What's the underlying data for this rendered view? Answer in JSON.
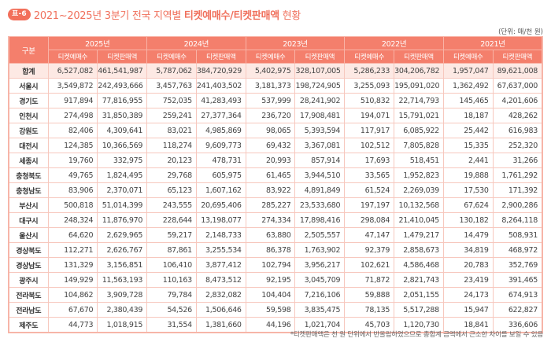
{
  "title": {
    "badge": "표-6",
    "text_plain": "2021~2025년 3분기 전국 지역별 ",
    "text_bold": "티켓예매수/티켓판매액",
    "text_tail": " 현황"
  },
  "unit": "(단위: 매/천 원)",
  "table": {
    "region_header": "구분",
    "years": [
      "2025년",
      "2024년",
      "2023년",
      "2022년",
      "2021년"
    ],
    "sub_headers": [
      "티켓예매수",
      "티켓판매액"
    ],
    "rows": [
      {
        "region": "합계",
        "values": [
          "6,527,082",
          "461,541,987",
          "5,787,062",
          "384,720,929",
          "5,402,975",
          "328,107,005",
          "5,286,233",
          "304,206,782",
          "1,957,047",
          "89,621,008"
        ]
      },
      {
        "region": "서울시",
        "values": [
          "3,549,872",
          "242,493,666",
          "3,457,763",
          "241,403,502",
          "3,181,373",
          "198,724,905",
          "3,255,093",
          "195,091,020",
          "1,362,492",
          "67,637,000"
        ]
      },
      {
        "region": "경기도",
        "values": [
          "917,894",
          "77,816,955",
          "752,035",
          "41,283,493",
          "537,999",
          "28,241,902",
          "510,832",
          "22,714,793",
          "145,465",
          "4,201,606"
        ]
      },
      {
        "region": "인천시",
        "values": [
          "274,498",
          "31,850,389",
          "259,241",
          "27,377,364",
          "236,720",
          "17,908,481",
          "194,071",
          "15,791,021",
          "18,187",
          "428,262"
        ]
      },
      {
        "region": "강원도",
        "values": [
          "82,406",
          "4,309,641",
          "83,021",
          "4,985,869",
          "98,065",
          "5,393,594",
          "117,917",
          "6,085,922",
          "25,442",
          "616,983"
        ]
      },
      {
        "region": "대전시",
        "values": [
          "124,385",
          "10,366,569",
          "118,274",
          "9,609,773",
          "69,432",
          "3,367,081",
          "102,512",
          "7,805,828",
          "15,335",
          "252,320"
        ]
      },
      {
        "region": "세종시",
        "values": [
          "19,760",
          "332,975",
          "20,123",
          "478,731",
          "20,993",
          "857,914",
          "17,693",
          "518,451",
          "2,441",
          "31,266"
        ]
      },
      {
        "region": "충청북도",
        "values": [
          "49,765",
          "1,824,495",
          "29,768",
          "605,975",
          "61,465",
          "3,944,510",
          "33,565",
          "1,952,823",
          "19,888",
          "1,761,292"
        ]
      },
      {
        "region": "충청남도",
        "values": [
          "83,906",
          "2,370,071",
          "65,123",
          "1,607,162",
          "83,922",
          "4,891,849",
          "61,524",
          "2,269,039",
          "17,530",
          "171,392"
        ]
      },
      {
        "region": "부산시",
        "values": [
          "500,818",
          "51,014,399",
          "243,555",
          "20,695,406",
          "285,227",
          "23,533,680",
          "197,197",
          "10,132,568",
          "67,624",
          "2,900,286"
        ]
      },
      {
        "region": "대구시",
        "values": [
          "248,324",
          "11,876,970",
          "228,644",
          "13,198,077",
          "274,334",
          "17,898,416",
          "298,084",
          "21,410,045",
          "130,182",
          "8,264,118"
        ]
      },
      {
        "region": "울산시",
        "values": [
          "64,620",
          "2,629,965",
          "59,217",
          "2,148,733",
          "63,880",
          "2,505,557",
          "47,147",
          "1,479,217",
          "14,479",
          "508,931"
        ]
      },
      {
        "region": "경상북도",
        "values": [
          "112,271",
          "2,626,767",
          "87,861",
          "3,255,534",
          "86,378",
          "1,763,902",
          "92,379",
          "2,858,673",
          "34,819",
          "468,972"
        ]
      },
      {
        "region": "경상남도",
        "values": [
          "131,329",
          "3,156,851",
          "106,410",
          "3,877,412",
          "102,794",
          "3,956,217",
          "102,621",
          "4,586,468",
          "20,783",
          "352,769"
        ]
      },
      {
        "region": "광주시",
        "values": [
          "149,929",
          "11,563,193",
          "110,163",
          "8,473,512",
          "92,195",
          "3,045,709",
          "71,872",
          "2,821,743",
          "23,419",
          "391,465"
        ]
      },
      {
        "region": "전라북도",
        "values": [
          "104,862",
          "3,909,728",
          "79,784",
          "2,832,082",
          "104,404",
          "7,216,106",
          "59,888",
          "2,051,155",
          "24,173",
          "674,913"
        ]
      },
      {
        "region": "전라남도",
        "values": [
          "67,670",
          "2,380,439",
          "54,526",
          "1,506,646",
          "59,598",
          "3,835,475",
          "78,135",
          "5,517,288",
          "15,947",
          "622,827"
        ]
      },
      {
        "region": "제주도",
        "values": [
          "44,773",
          "1,018,915",
          "31,554",
          "1,381,660",
          "44,196",
          "1,021,704",
          "45,703",
          "1,120,730",
          "18,841",
          "336,606"
        ]
      }
    ]
  },
  "footnote": "*티켓판매액은 천 원 단위에서 반올림하였으므로 총합계 금액에서 근소한 차이를 보일 수 있음",
  "colors": {
    "accent": "#f26f5a",
    "header_bg": "#f47f6c",
    "total_row_bg": "#fde9e4",
    "grid": "#f7c8be"
  }
}
